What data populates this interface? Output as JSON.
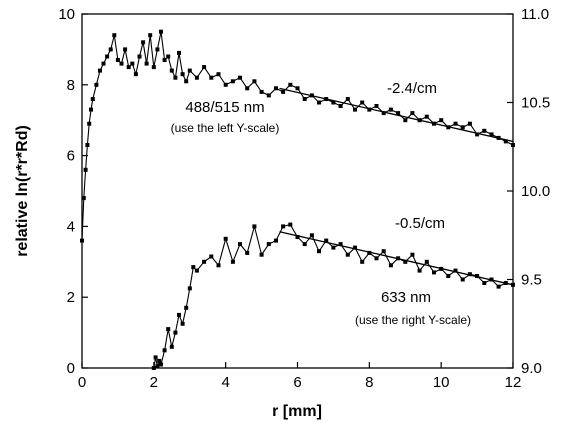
{
  "chart_data": {
    "type": "line",
    "xlabel": "r [mm]",
    "ylabel": "relative  ln(r*r*Rd)",
    "xlim": [
      0,
      12
    ],
    "ylim_left": [
      0,
      10
    ],
    "ylim_right": [
      9.0,
      11.0
    ],
    "x_ticks": [
      "0",
      "2",
      "4",
      "6",
      "8",
      "10",
      "12"
    ],
    "y_left_ticks": [
      "0",
      "2",
      "4",
      "6",
      "8",
      "10"
    ],
    "y_right_ticks": [
      "9.0",
      "9.5",
      "10.0",
      "10.5",
      "11.0"
    ],
    "grid": false,
    "series": [
      {
        "name": "488/515 nm",
        "axis": "left",
        "x": [
          0.0,
          0.05,
          0.1,
          0.15,
          0.2,
          0.25,
          0.3,
          0.4,
          0.5,
          0.6,
          0.7,
          0.8,
          0.9,
          1.0,
          1.1,
          1.2,
          1.3,
          1.4,
          1.5,
          1.6,
          1.7,
          1.8,
          1.9,
          2.0,
          2.1,
          2.2,
          2.3,
          2.4,
          2.5,
          2.6,
          2.7,
          2.8,
          2.9,
          3.0,
          3.2,
          3.4,
          3.6,
          3.8,
          4.0,
          4.2,
          4.4,
          4.6,
          4.8,
          5.0,
          5.2,
          5.4,
          5.6,
          5.8,
          6.0,
          6.2,
          6.4,
          6.6,
          6.8,
          7.0,
          7.2,
          7.4,
          7.6,
          7.8,
          8.0,
          8.2,
          8.4,
          8.6,
          8.8,
          9.0,
          9.2,
          9.4,
          9.6,
          9.8,
          10.0,
          10.2,
          10.4,
          10.6,
          10.8,
          11.0,
          11.2,
          11.4,
          11.6,
          11.8,
          12.0
        ],
        "y": [
          3.6,
          4.8,
          5.6,
          6.3,
          6.9,
          7.3,
          7.6,
          8.0,
          8.4,
          8.6,
          8.8,
          9.0,
          9.4,
          8.7,
          8.6,
          9.0,
          8.5,
          8.6,
          8.3,
          8.8,
          9.2,
          8.6,
          9.4,
          8.5,
          9.0,
          9.5,
          8.7,
          8.8,
          8.4,
          8.2,
          8.9,
          8.3,
          8.1,
          8.4,
          8.2,
          8.5,
          8.2,
          8.3,
          8.0,
          8.1,
          8.2,
          7.9,
          8.1,
          7.8,
          7.7,
          7.9,
          7.8,
          8.0,
          7.9,
          7.6,
          7.7,
          7.5,
          7.6,
          7.5,
          7.4,
          7.6,
          7.3,
          7.5,
          7.3,
          7.4,
          7.2,
          7.3,
          7.2,
          7.0,
          7.2,
          7.0,
          7.1,
          6.9,
          7.0,
          6.8,
          6.9,
          6.8,
          6.9,
          6.6,
          6.7,
          6.6,
          6.5,
          6.4,
          6.3
        ],
        "fit_line": {
          "x": [
            5.5,
            12.0
          ],
          "y": [
            7.9,
            6.4
          ]
        }
      },
      {
        "name": "633 nm",
        "axis": "right",
        "x": [
          2.0,
          2.05,
          2.1,
          2.15,
          2.2,
          2.3,
          2.4,
          2.5,
          2.6,
          2.7,
          2.8,
          2.9,
          3.0,
          3.1,
          3.2,
          3.4,
          3.6,
          3.8,
          4.0,
          4.2,
          4.4,
          4.6,
          4.8,
          5.0,
          5.2,
          5.4,
          5.6,
          5.8,
          6.0,
          6.2,
          6.4,
          6.6,
          6.8,
          7.0,
          7.2,
          7.4,
          7.6,
          7.8,
          8.0,
          8.2,
          8.4,
          8.6,
          8.8,
          9.0,
          9.2,
          9.4,
          9.6,
          9.8,
          10.0,
          10.2,
          10.4,
          10.6,
          10.8,
          11.0,
          11.2,
          11.4,
          11.6,
          11.8,
          12.0
        ],
        "y": [
          9.0,
          9.06,
          9.01,
          9.04,
          9.02,
          9.1,
          9.22,
          9.12,
          9.2,
          9.3,
          9.25,
          9.34,
          9.45,
          9.57,
          9.55,
          9.6,
          9.63,
          9.58,
          9.73,
          9.6,
          9.7,
          9.65,
          9.8,
          9.64,
          9.7,
          9.72,
          9.8,
          9.81,
          9.74,
          9.7,
          9.75,
          9.66,
          9.72,
          9.68,
          9.7,
          9.64,
          9.68,
          9.6,
          9.65,
          9.62,
          9.66,
          9.58,
          9.62,
          9.6,
          9.64,
          9.55,
          9.6,
          9.54,
          9.56,
          9.52,
          9.55,
          9.5,
          9.53,
          9.52,
          9.48,
          9.5,
          9.46,
          9.48,
          9.47
        ],
        "fit_line": {
          "x": [
            5.5,
            12.0
          ],
          "y": [
            9.77,
            9.47
          ]
        }
      }
    ],
    "annotations": [
      {
        "text": "488/515 nm",
        "size": "big"
      },
      {
        "text": "(use the left Y-scale)",
        "size": "small"
      },
      {
        "text": "-2.4/cm",
        "size": "big"
      },
      {
        "text": "633 nm",
        "size": "big"
      },
      {
        "text": "(use the right Y-scale)",
        "size": "small"
      },
      {
        "text": "-0.5/cm",
        "size": "big"
      }
    ]
  }
}
